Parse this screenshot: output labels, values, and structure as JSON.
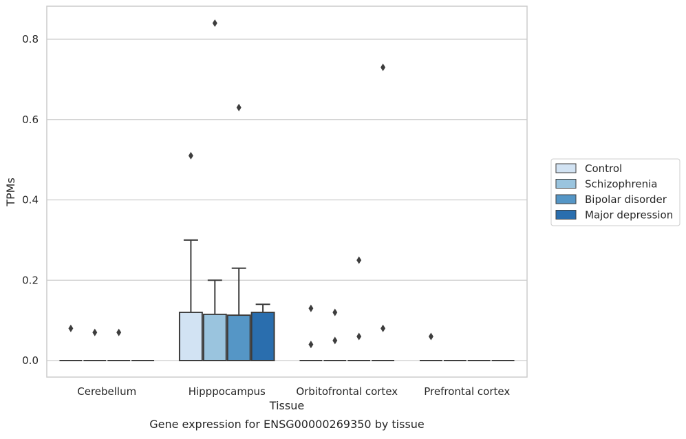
{
  "caption": "Gene expression for ENSG00000269350 by tissue",
  "chart_data": {
    "type": "box",
    "title": "",
    "xlabel": "Tissue",
    "ylabel": "TPMs",
    "ylim": [
      -0.04,
      0.885
    ],
    "yticks": [
      0.0,
      0.2,
      0.4,
      0.6,
      0.8
    ],
    "ytick_labels": [
      "0.0",
      "0.2",
      "0.4",
      "0.6",
      "0.8"
    ],
    "grid": "horizontal",
    "legend_position": "right",
    "categories": [
      "Cerebellum",
      "Hipppocampus",
      "Orbitofrontal cortex",
      "Prefrontal cortex"
    ],
    "series": [
      {
        "name": "Control",
        "color": "#d2e3f3",
        "boxes": [
          {
            "q1": 0,
            "median": 0,
            "q3": 0,
            "whisker_low": 0,
            "whisker_high": 0,
            "outliers": [
              0.08
            ]
          },
          {
            "q1": 0,
            "median": 0,
            "q3": 0.12,
            "whisker_low": 0,
            "whisker_high": 0.3,
            "outliers": [
              0.51
            ]
          },
          {
            "q1": 0,
            "median": 0,
            "q3": 0,
            "whisker_low": 0,
            "whisker_high": 0,
            "outliers": [
              0.04,
              0.13
            ]
          },
          {
            "q1": 0,
            "median": 0,
            "q3": 0,
            "whisker_low": 0,
            "whisker_high": 0,
            "outliers": [
              0.06
            ]
          }
        ]
      },
      {
        "name": "Schizophrenia",
        "color": "#9ac4de",
        "boxes": [
          {
            "q1": 0,
            "median": 0,
            "q3": 0,
            "whisker_low": 0,
            "whisker_high": 0,
            "outliers": [
              0.07
            ]
          },
          {
            "q1": 0,
            "median": 0,
            "q3": 0.115,
            "whisker_low": 0,
            "whisker_high": 0.2,
            "outliers": [
              0.84
            ]
          },
          {
            "q1": 0,
            "median": 0,
            "q3": 0,
            "whisker_low": 0,
            "whisker_high": 0,
            "outliers": [
              0.05,
              0.12
            ]
          },
          {
            "q1": 0,
            "median": 0,
            "q3": 0,
            "whisker_low": 0,
            "whisker_high": 0,
            "outliers": []
          }
        ]
      },
      {
        "name": "Bipolar disorder",
        "color": "#5596c6",
        "boxes": [
          {
            "q1": 0,
            "median": 0,
            "q3": 0,
            "whisker_low": 0,
            "whisker_high": 0,
            "outliers": [
              0.07
            ]
          },
          {
            "q1": 0,
            "median": 0,
            "q3": 0.113,
            "whisker_low": 0,
            "whisker_high": 0.23,
            "outliers": [
              0.63
            ]
          },
          {
            "q1": 0,
            "median": 0,
            "q3": 0,
            "whisker_low": 0,
            "whisker_high": 0,
            "outliers": [
              0.06,
              0.25
            ]
          },
          {
            "q1": 0,
            "median": 0,
            "q3": 0,
            "whisker_low": 0,
            "whisker_high": 0,
            "outliers": []
          }
        ]
      },
      {
        "name": "Major depression",
        "color": "#2a6eae",
        "boxes": [
          {
            "q1": 0,
            "median": 0,
            "q3": 0,
            "whisker_low": 0,
            "whisker_high": 0,
            "outliers": []
          },
          {
            "q1": 0,
            "median": 0,
            "q3": 0.12,
            "whisker_low": 0,
            "whisker_high": 0.14,
            "outliers": []
          },
          {
            "q1": 0,
            "median": 0,
            "q3": 0,
            "whisker_low": 0,
            "whisker_high": 0,
            "outliers": [
              0.08,
              0.73
            ]
          },
          {
            "q1": 0,
            "median": 0,
            "q3": 0,
            "whisker_low": 0,
            "whisker_high": 0,
            "outliers": []
          }
        ]
      }
    ]
  }
}
